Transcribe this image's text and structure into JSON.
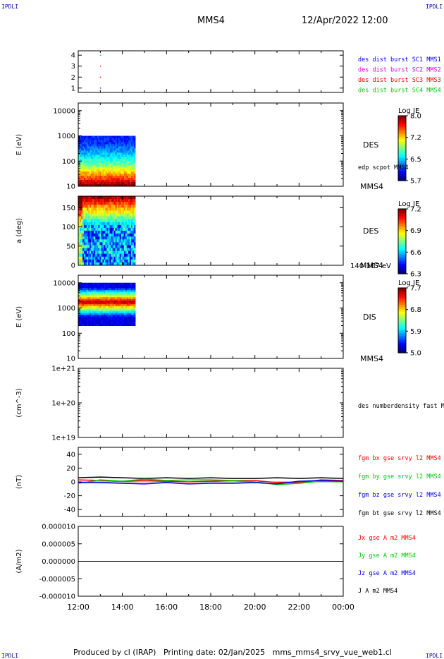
{
  "corner_label": "IPDLI",
  "header": {
    "spacecraft": "MMS4",
    "datetime": "12/Apr/2022 12:00"
  },
  "footer": "Produced by cl (IRAP)   Printing date: 02/Jan/2025   mms_mms4_srvy_vue_web1.cl",
  "time_axis": {
    "ticks": [
      "12:00",
      "14:00",
      "16:00",
      "18:00",
      "20:00",
      "22:00",
      "00:00"
    ]
  },
  "chart_data": [
    {
      "type": "scatter",
      "ylim": [
        0.6,
        4.4
      ],
      "yticks": [
        "4",
        "3",
        "2",
        "1"
      ],
      "legend": [
        {
          "label": "des dist burst SC1 MMS1",
          "color": "#0000ff"
        },
        {
          "label": "des dist burst SC2 MMS2",
          "color": "#e000e0"
        },
        {
          "label": "des dist burst SC3 MMS3",
          "color": "#ff0000"
        },
        {
          "label": "des dist burst SC4 MMS4",
          "color": "#00cc00"
        }
      ],
      "points": [
        {
          "x": "13:00",
          "y": 4,
          "color": "#00cc00"
        },
        {
          "x": "13:00",
          "y": 3,
          "color": "#ff0000"
        },
        {
          "x": "13:00",
          "y": 2,
          "color": "#ff0000"
        },
        {
          "x": "13:00",
          "y": 1,
          "color": "#0000ff"
        }
      ]
    },
    {
      "type": "heatmap",
      "ylabel": "E (eV)",
      "yscale": "log",
      "ylim": [
        10,
        20000
      ],
      "yticks": [
        "10000",
        "1000",
        "100",
        "10"
      ],
      "x_range": [
        "12:00",
        "14:35"
      ],
      "y_range": [
        10,
        1000
      ],
      "instrument": "DES",
      "overlay_label": "edp scpot MMS4",
      "sc_label": "MMS4",
      "colorbar": {
        "title": "Log JE",
        "ticks": [
          "8.0",
          "7.2",
          "6.5",
          "5.7"
        ]
      }
    },
    {
      "type": "heatmap",
      "ylabel": "a (deg)",
      "ylim": [
        0,
        180
      ],
      "yticks": [
        "150",
        "100",
        "50",
        "0"
      ],
      "x_range": [
        "12:00",
        "14:35"
      ],
      "instrument": "DES",
      "sc_label": "MMS4",
      "energy_range": "140-167 eV",
      "colorbar": {
        "title": "Log JE",
        "ticks": [
          "7.2",
          "6.9",
          "6.6",
          "6.3"
        ]
      }
    },
    {
      "type": "heatmap",
      "ylabel": "E (eV)",
      "yscale": "log",
      "ylim": [
        10,
        20000
      ],
      "yticks": [
        "10000",
        "1000",
        "100",
        "10"
      ],
      "x_range": [
        "12:00",
        "14:35"
      ],
      "y_range": [
        200,
        10000
      ],
      "instrument": "DIS",
      "sc_label": "MMS4",
      "colorbar": {
        "title": "Log JE",
        "ticks": [
          "7.7",
          "6.8",
          "5.9",
          "5.0"
        ]
      }
    },
    {
      "type": "line",
      "ylabel": "(cm^-3)",
      "yscale": "log",
      "ylim": [
        1e+19,
        1e+21
      ],
      "yticks": [
        "1e+21",
        "1e+20",
        "1e+19"
      ],
      "legend": [
        {
          "label": "des numberdensity fast M",
          "color": "#000000"
        }
      ],
      "series": []
    },
    {
      "type": "line",
      "ylabel": "(nT)",
      "ylim": [
        -50,
        50
      ],
      "yticks": [
        "40",
        "20",
        "0",
        "-20",
        "-40"
      ],
      "legend": [
        {
          "label": "fgm bx gse srvy l2 MMS4",
          "color": "#ff0000"
        },
        {
          "label": "fgm by gse srvy l2 MMS4",
          "color": "#00cc00"
        },
        {
          "label": "fgm bz gse srvy l2 MMS4",
          "color": "#0000ff"
        },
        {
          "label": "fgm bt gse srvy l2 MMS4",
          "color": "#000000"
        }
      ],
      "series": [
        {
          "color": "#000000",
          "x": [
            "12:00",
            "13:00",
            "14:00",
            "15:00",
            "16:00",
            "17:00",
            "18:00",
            "19:00",
            "20:00",
            "21:00",
            "22:00",
            "23:00",
            "00:00"
          ],
          "values": [
            6,
            7,
            6,
            5,
            6,
            5,
            6,
            5,
            5,
            6,
            5,
            6,
            5
          ]
        },
        {
          "color": "#ff0000",
          "x": [
            "12:00",
            "13:00",
            "14:00",
            "15:00",
            "16:00",
            "17:00",
            "18:00",
            "19:00",
            "20:00",
            "21:00",
            "22:00",
            "23:00",
            "00:00"
          ],
          "values": [
            3,
            2,
            1,
            2,
            1,
            0,
            1,
            2,
            2,
            -1,
            -1,
            3,
            2
          ]
        },
        {
          "color": "#00cc00",
          "x": [
            "12:00",
            "13:00",
            "14:00",
            "15:00",
            "16:00",
            "17:00",
            "18:00",
            "19:00",
            "20:00",
            "21:00",
            "22:00",
            "23:00",
            "00:00"
          ],
          "values": [
            -2,
            3,
            1,
            4,
            2,
            3,
            3,
            2,
            0,
            -4,
            -2,
            1,
            0
          ]
        },
        {
          "color": "#0000ff",
          "x": [
            "12:00",
            "13:00",
            "14:00",
            "15:00",
            "16:00",
            "17:00",
            "18:00",
            "19:00",
            "20:00",
            "21:00",
            "22:00",
            "23:00",
            "00:00"
          ],
          "values": [
            -1,
            -1,
            -2,
            -3,
            -1,
            -3,
            -2,
            -2,
            -1,
            -3,
            1,
            2,
            1
          ]
        }
      ]
    },
    {
      "type": "line",
      "ylabel": "(A/m2)",
      "ylim": [
        -1e-05,
        1e-05
      ],
      "yticks": [
        "0.000010",
        "0.000005",
        "0.000000",
        "-0.000005",
        "-0.000010"
      ],
      "legend": [
        {
          "label": "Jx gse A m2 MMS4",
          "color": "#ff0000"
        },
        {
          "label": "Jy gse A m2 MMS4",
          "color": "#00cc00"
        },
        {
          "label": "Jz gse A m2 MMS4",
          "color": "#0000ff"
        },
        {
          "label": "J A m2 MMS4",
          "color": "#000000"
        }
      ],
      "series": [
        {
          "color": "#000000",
          "x": [
            "12:00",
            "18:00",
            "00:00"
          ],
          "values": [
            0,
            0,
            0
          ]
        }
      ]
    }
  ]
}
